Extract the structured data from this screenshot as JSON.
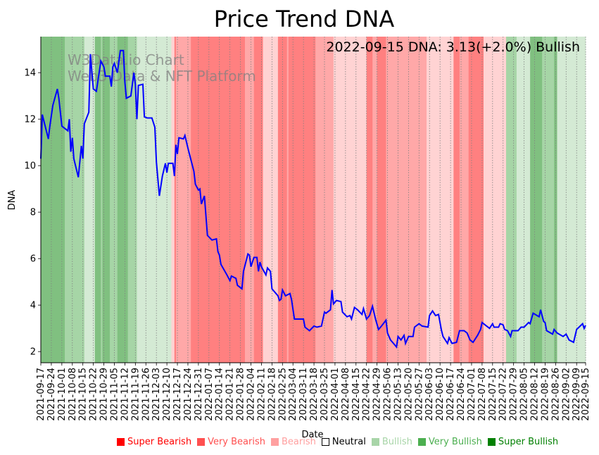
{
  "chart_data": {
    "type": "line",
    "title": "Price Trend DNA",
    "xlabel": "Date",
    "ylabel": "DNA",
    "annotation": "2022-09-15 DNA: 3.13(+2.0%) Bullish",
    "watermark": [
      "W3Data.io Chart",
      "Web3 Data & NFT Platform"
    ],
    "start_date": "2021-09-17",
    "xlim_days": [
      0,
      363
    ],
    "ylim": [
      1.52,
      15.55
    ],
    "yticks": [
      2,
      4,
      6,
      8,
      10,
      12,
      14
    ],
    "xtick_days": [
      0,
      7,
      14,
      21,
      28,
      35,
      42,
      49,
      56,
      63,
      70,
      77,
      84,
      91,
      98,
      105,
      112,
      119,
      126,
      133,
      140,
      147,
      154,
      161,
      168,
      175,
      182,
      189,
      196,
      203,
      210,
      217,
      224,
      231,
      238,
      245,
      252,
      259,
      266,
      273,
      280,
      287,
      294,
      301,
      308,
      315,
      322,
      329,
      336,
      343,
      350,
      357,
      363
    ],
    "xtick_labels": [
      "2021-09-17",
      "2021-09-24",
      "2021-10-01",
      "2021-10-08",
      "2021-10-15",
      "2021-10-22",
      "2021-10-29",
      "2021-11-05",
      "2021-11-12",
      "2021-11-19",
      "2021-11-26",
      "2021-12-03",
      "2021-12-10",
      "2021-12-17",
      "2021-12-24",
      "2021-12-31",
      "2022-01-07",
      "2022-01-14",
      "2022-01-21",
      "2022-01-28",
      "2022-02-04",
      "2022-02-11",
      "2022-02-18",
      "2022-02-25",
      "2022-03-04",
      "2022-03-11",
      "2022-03-18",
      "2022-03-25",
      "2022-04-01",
      "2022-04-08",
      "2022-04-15",
      "2022-04-22",
      "2022-04-29",
      "2022-05-06",
      "2022-05-13",
      "2022-05-20",
      "2022-05-27",
      "2022-06-03",
      "2022-06-10",
      "2022-06-17",
      "2022-06-24",
      "2022-07-01",
      "2022-07-08",
      "2022-07-15",
      "2022-07-22",
      "2022-07-29",
      "2022-08-05",
      "2022-08-12",
      "2022-08-19",
      "2022-08-26",
      "2022-09-02",
      "2022-09-09",
      "2022-09-15"
    ],
    "grid": "x-dotted",
    "series": [
      {
        "name": "DNA",
        "color": "#0000ff",
        "points": [
          [
            0,
            10.3
          ],
          [
            1,
            12.2
          ],
          [
            5,
            11.15
          ],
          [
            6,
            11.7
          ],
          [
            8,
            12.6
          ],
          [
            11,
            13.3
          ],
          [
            12,
            12.9
          ],
          [
            14,
            11.7
          ],
          [
            18,
            11.5
          ],
          [
            19,
            12.0
          ],
          [
            20,
            10.6
          ],
          [
            21,
            11.2
          ],
          [
            22,
            10.3
          ],
          [
            25,
            9.5
          ],
          [
            27,
            10.85
          ],
          [
            28,
            10.3
          ],
          [
            29,
            11.8
          ],
          [
            32,
            12.3
          ],
          [
            33,
            14.8
          ],
          [
            35,
            13.3
          ],
          [
            37,
            13.2
          ],
          [
            40,
            14.5
          ],
          [
            42,
            14.25
          ],
          [
            43,
            13.85
          ],
          [
            46,
            13.85
          ],
          [
            47,
            13.4
          ],
          [
            48,
            14.25
          ],
          [
            49,
            14.4
          ],
          [
            51,
            14.0
          ],
          [
            53,
            14.95
          ],
          [
            55,
            14.95
          ],
          [
            56,
            13.6
          ],
          [
            57,
            12.9
          ],
          [
            60,
            13.0
          ],
          [
            62,
            14.0
          ],
          [
            63,
            13.5
          ],
          [
            64,
            12.0
          ],
          [
            65,
            13.45
          ],
          [
            68,
            13.5
          ],
          [
            69,
            12.1
          ],
          [
            71,
            12.05
          ],
          [
            74,
            12.05
          ],
          [
            76,
            11.65
          ],
          [
            77,
            10.15
          ],
          [
            79,
            8.7
          ],
          [
            81,
            9.55
          ],
          [
            83,
            10.1
          ],
          [
            84,
            9.7
          ],
          [
            85,
            10.1
          ],
          [
            88,
            10.1
          ],
          [
            89,
            9.55
          ],
          [
            90,
            10.9
          ],
          [
            91,
            10.5
          ],
          [
            92,
            11.2
          ],
          [
            95,
            11.15
          ],
          [
            96,
            11.3
          ],
          [
            98,
            10.75
          ],
          [
            102,
            9.75
          ],
          [
            103,
            9.2
          ],
          [
            105,
            8.95
          ],
          [
            106,
            9.0
          ],
          [
            107,
            8.35
          ],
          [
            109,
            8.7
          ],
          [
            111,
            7.0
          ],
          [
            114,
            6.8
          ],
          [
            117,
            6.85
          ],
          [
            118,
            6.3
          ],
          [
            119,
            6.15
          ],
          [
            120,
            5.75
          ],
          [
            124,
            5.3
          ],
          [
            126,
            5.05
          ],
          [
            127,
            5.25
          ],
          [
            130,
            5.15
          ],
          [
            131,
            4.85
          ],
          [
            134,
            4.7
          ],
          [
            135,
            5.45
          ],
          [
            138,
            6.2
          ],
          [
            139,
            6.15
          ],
          [
            140,
            5.65
          ],
          [
            142,
            6.05
          ],
          [
            144,
            6.05
          ],
          [
            145,
            5.45
          ],
          [
            146,
            5.85
          ],
          [
            147,
            5.65
          ],
          [
            150,
            5.3
          ],
          [
            151,
            5.6
          ],
          [
            153,
            5.45
          ],
          [
            154,
            4.7
          ],
          [
            158,
            4.4
          ],
          [
            159,
            4.2
          ],
          [
            160,
            4.25
          ],
          [
            161,
            4.65
          ],
          [
            163,
            4.4
          ],
          [
            166,
            4.5
          ],
          [
            167,
            4.25
          ],
          [
            169,
            3.4
          ],
          [
            173,
            3.4
          ],
          [
            175,
            3.4
          ],
          [
            176,
            3.05
          ],
          [
            179,
            2.9
          ],
          [
            182,
            3.1
          ],
          [
            184,
            3.05
          ],
          [
            187,
            3.1
          ],
          [
            189,
            3.7
          ],
          [
            190,
            3.65
          ],
          [
            193,
            3.8
          ],
          [
            194,
            4.65
          ],
          [
            195,
            4.05
          ],
          [
            197,
            4.2
          ],
          [
            200,
            4.15
          ],
          [
            201,
            3.7
          ],
          [
            204,
            3.5
          ],
          [
            206,
            3.55
          ],
          [
            207,
            3.4
          ],
          [
            209,
            3.9
          ],
          [
            211,
            3.8
          ],
          [
            214,
            3.6
          ],
          [
            215,
            3.85
          ],
          [
            217,
            3.4
          ],
          [
            219,
            3.55
          ],
          [
            221,
            3.95
          ],
          [
            223,
            3.4
          ],
          [
            225,
            2.95
          ],
          [
            227,
            3.1
          ],
          [
            230,
            3.35
          ],
          [
            231,
            2.8
          ],
          [
            233,
            2.5
          ],
          [
            235,
            2.35
          ],
          [
            237,
            2.2
          ],
          [
            238,
            2.65
          ],
          [
            240,
            2.5
          ],
          [
            242,
            2.7
          ],
          [
            243,
            2.35
          ],
          [
            245,
            2.65
          ],
          [
            248,
            2.65
          ],
          [
            249,
            3.05
          ],
          [
            252,
            3.2
          ],
          [
            254,
            3.1
          ],
          [
            258,
            3.05
          ],
          [
            259,
            3.55
          ],
          [
            261,
            3.75
          ],
          [
            263,
            3.55
          ],
          [
            265,
            3.6
          ],
          [
            267,
            2.9
          ],
          [
            268,
            2.65
          ],
          [
            271,
            2.35
          ],
          [
            272,
            2.6
          ],
          [
            274,
            2.35
          ],
          [
            277,
            2.4
          ],
          [
            279,
            2.9
          ],
          [
            282,
            2.9
          ],
          [
            284,
            2.8
          ],
          [
            286,
            2.5
          ],
          [
            288,
            2.4
          ],
          [
            291,
            2.7
          ],
          [
            293,
            2.95
          ],
          [
            294,
            3.25
          ],
          [
            297,
            3.1
          ],
          [
            299,
            3.0
          ],
          [
            301,
            3.2
          ],
          [
            302,
            3.05
          ],
          [
            305,
            3.05
          ],
          [
            306,
            3.2
          ],
          [
            308,
            3.15
          ],
          [
            309,
            2.95
          ],
          [
            311,
            2.9
          ],
          [
            313,
            2.65
          ],
          [
            314,
            2.9
          ],
          [
            318,
            2.9
          ],
          [
            320,
            3.05
          ],
          [
            322,
            3.05
          ],
          [
            325,
            3.25
          ],
          [
            326,
            3.2
          ],
          [
            328,
            3.65
          ],
          [
            332,
            3.5
          ],
          [
            333,
            3.8
          ],
          [
            335,
            3.3
          ],
          [
            336,
            3.25
          ],
          [
            337,
            2.9
          ],
          [
            341,
            2.75
          ],
          [
            342,
            2.95
          ],
          [
            344,
            2.8
          ],
          [
            348,
            2.65
          ],
          [
            350,
            2.75
          ],
          [
            352,
            2.5
          ],
          [
            355,
            2.4
          ],
          [
            357,
            2.95
          ],
          [
            361,
            3.2
          ],
          [
            362,
            3.0
          ],
          [
            363,
            3.13
          ]
        ]
      }
    ],
    "bands": [
      {
        "from": 0,
        "to": 16,
        "state": "super_bullish"
      },
      {
        "from": 16,
        "to": 29,
        "state": "very_bullish"
      },
      {
        "from": 29,
        "to": 36,
        "state": "bullish"
      },
      {
        "from": 36,
        "to": 40,
        "state": "super_bullish"
      },
      {
        "from": 40,
        "to": 41,
        "state": "very_bullish"
      },
      {
        "from": 41,
        "to": 46,
        "state": "super_bullish"
      },
      {
        "from": 46,
        "to": 51,
        "state": "very_bullish"
      },
      {
        "from": 51,
        "to": 58,
        "state": "super_bullish"
      },
      {
        "from": 58,
        "to": 64,
        "state": "very_bullish"
      },
      {
        "from": 64,
        "to": 87,
        "state": "bullish"
      },
      {
        "from": 87,
        "to": 89,
        "state": "bearish"
      },
      {
        "from": 89,
        "to": 90,
        "state": "super_bearish"
      },
      {
        "from": 90,
        "to": 100,
        "state": "very_bearish"
      },
      {
        "from": 100,
        "to": 136,
        "state": "super_bearish"
      },
      {
        "from": 136,
        "to": 142,
        "state": "very_bearish"
      },
      {
        "from": 142,
        "to": 148,
        "state": "super_bearish"
      },
      {
        "from": 148,
        "to": 158,
        "state": "bearish"
      },
      {
        "from": 158,
        "to": 164,
        "state": "super_bearish"
      },
      {
        "from": 164,
        "to": 165,
        "state": "very_bearish"
      },
      {
        "from": 165,
        "to": 183,
        "state": "super_bearish"
      },
      {
        "from": 183,
        "to": 195,
        "state": "very_bearish"
      },
      {
        "from": 195,
        "to": 217,
        "state": "bearish"
      },
      {
        "from": 217,
        "to": 221,
        "state": "super_bearish"
      },
      {
        "from": 221,
        "to": 224,
        "state": "very_bearish"
      },
      {
        "from": 224,
        "to": 230,
        "state": "super_bearish"
      },
      {
        "from": 230,
        "to": 257,
        "state": "very_bearish"
      },
      {
        "from": 257,
        "to": 275,
        "state": "bearish"
      },
      {
        "from": 275,
        "to": 279,
        "state": "super_bearish"
      },
      {
        "from": 279,
        "to": 285,
        "state": "very_bearish"
      },
      {
        "from": 285,
        "to": 295,
        "state": "super_bearish"
      },
      {
        "from": 295,
        "to": 310,
        "state": "bearish"
      },
      {
        "from": 310,
        "to": 317,
        "state": "very_bullish"
      },
      {
        "from": 317,
        "to": 326,
        "state": "bullish"
      },
      {
        "from": 326,
        "to": 334,
        "state": "super_bullish"
      },
      {
        "from": 334,
        "to": 342,
        "state": "very_bullish"
      },
      {
        "from": 342,
        "to": 344,
        "state": "super_bullish"
      },
      {
        "from": 344,
        "to": 363,
        "state": "bullish"
      }
    ],
    "band_colors": {
      "super_bearish": "#ff8080",
      "very_bearish": "#ffa8a8",
      "bearish": "#ffd3d3",
      "neutral": "#ffffff",
      "bullish": "#d4ead4",
      "very_bullish": "#a6d5a6",
      "super_bullish": "#80c080"
    },
    "legend": [
      {
        "label": "Super Bearish",
        "color": "#ff0000"
      },
      {
        "label": "Very Bearish",
        "color": "#ff5050"
      },
      {
        "label": "Bearish",
        "color": "#ffa0a0"
      },
      {
        "label": "Neutral",
        "color": "#ffffff"
      },
      {
        "label": "Bullish",
        "color": "#a8d5a8"
      },
      {
        "label": "Very Bullish",
        "color": "#4caf50"
      },
      {
        "label": "Super Bullish",
        "color": "#008000"
      }
    ]
  }
}
